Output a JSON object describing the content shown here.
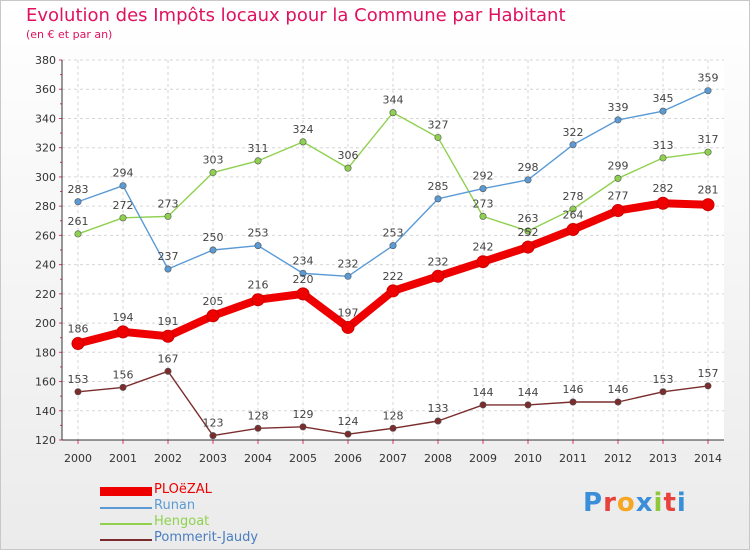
{
  "chart_data": {
    "type": "line",
    "title": "Evolution des Impôts locaux pour la Commune par Habitant",
    "subtitle": "(en € et par an)",
    "xlabel": "",
    "ylabel": "",
    "x": [
      "2000",
      "2001",
      "2002",
      "2003",
      "2004",
      "2005",
      "2006",
      "2007",
      "2008",
      "2009",
      "2010",
      "2011",
      "2012",
      "2013",
      "2014"
    ],
    "ylim": [
      120,
      380
    ],
    "yticks": [
      120,
      140,
      160,
      180,
      200,
      220,
      240,
      260,
      280,
      300,
      320,
      340,
      360,
      380
    ],
    "grid": true,
    "legend_position": "bottom-left",
    "series": [
      {
        "name": "PLOëZAL",
        "color": "#ee0000",
        "values": [
          186,
          194,
          191,
          205,
          216,
          220,
          197,
          222,
          232,
          242,
          252,
          264,
          277,
          282,
          281
        ],
        "labels": [
          "186",
          "194",
          "191",
          "205",
          "216",
          "220",
          "197",
          "222",
          "232",
          "242",
          "252",
          "264",
          "277",
          "282",
          "281"
        ]
      },
      {
        "name": "Runan",
        "color": "#5b9bd5",
        "values": [
          283,
          294,
          237,
          250,
          253,
          234,
          232,
          253,
          285,
          292,
          298,
          322,
          339,
          345,
          359
        ],
        "labels": [
          "283",
          "294",
          "237",
          "250",
          "253",
          "234",
          "232",
          "253",
          "285",
          "292",
          "298",
          "322",
          "339",
          "345",
          "359"
        ]
      },
      {
        "name": "Hengoat",
        "color": "#8fd14f",
        "values": [
          261,
          272,
          273,
          303,
          311,
          324,
          306,
          344,
          327,
          273,
          263,
          278,
          299,
          313,
          317
        ],
        "labels": [
          "261",
          "272",
          "273",
          "303",
          "311",
          "324",
          "306",
          "344",
          "327",
          "273",
          "263",
          "278",
          "299",
          "313",
          "317"
        ]
      },
      {
        "name": "Pommerit-Jaudy",
        "color": "#7b2d2d",
        "values": [
          153,
          156,
          167,
          123,
          128,
          129,
          124,
          128,
          133,
          144,
          144,
          146,
          146,
          153,
          157
        ],
        "labels": [
          "153",
          "156",
          "167",
          "123",
          "128",
          "129",
          "124",
          "128",
          "133",
          "144",
          "144",
          "146",
          "146",
          "153",
          "157"
        ]
      }
    ]
  },
  "brand": {
    "text": "Proxiti",
    "letter_colors": [
      "#3b8fd9",
      "#e8423c",
      "#f5a623",
      "#3b8fd9",
      "#8fc93a",
      "#e8423c",
      "#3b8fd9"
    ]
  }
}
